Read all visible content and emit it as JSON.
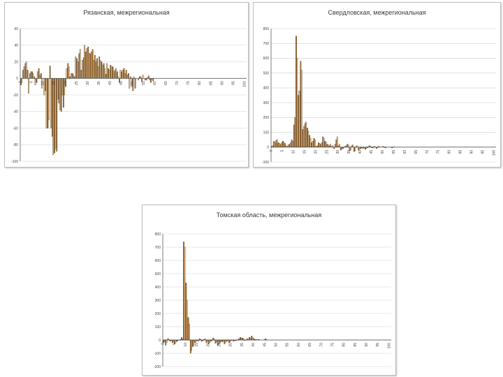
{
  "colors": {
    "series_a": "#b87a30",
    "series_b": "#f6cf9a",
    "edge": "#2b1a08",
    "grid": "#cfcfcf",
    "axis": "#444444"
  },
  "chart_data": [
    {
      "type": "bar",
      "title": "Рязанская, межрегиональная",
      "ylim": [
        -100,
        60
      ],
      "yticks": [
        -100,
        -80,
        -60,
        -40,
        -20,
        0,
        20,
        40,
        60
      ],
      "xticks": [
        0,
        5,
        10,
        15,
        20,
        25,
        30,
        35,
        40,
        45,
        50,
        55,
        60,
        65,
        70,
        75,
        80,
        85,
        90,
        95,
        100
      ],
      "x_start": 0,
      "x_step": 1,
      "grid": true,
      "series": [
        {
          "values": [
            -8,
            10,
            18,
            10,
            6,
            8,
            2,
            -5,
            12,
            6,
            0,
            -15,
            -60,
            15,
            -70,
            -90,
            -88,
            -30,
            -40,
            -35,
            -10,
            18,
            2,
            6,
            2,
            24,
            30,
            10,
            25,
            32,
            38,
            30,
            35,
            28,
            24,
            26,
            20,
            18,
            5,
            12,
            16,
            14,
            10,
            8,
            -5,
            8,
            12,
            10,
            6,
            2,
            -15,
            -12,
            0,
            2,
            -4,
            0,
            -2,
            3,
            -5,
            -3,
            0,
            0,
            0,
            0,
            0,
            0,
            0,
            0,
            0,
            0,
            0,
            0,
            0,
            0,
            0,
            0,
            0,
            0,
            0,
            0,
            0,
            0,
            0,
            0,
            0,
            0,
            0,
            0,
            0,
            0,
            0,
            0,
            0,
            0,
            0,
            0,
            0,
            0,
            0,
            0,
            0
          ]
        },
        {
          "values": [
            -5,
            14,
            20,
            -18,
            8,
            6,
            -8,
            8,
            4,
            -12,
            -20,
            -60,
            -50,
            -60,
            -92,
            -85,
            -25,
            -38,
            -20,
            -20,
            12,
            14,
            6,
            4,
            26,
            20,
            35,
            22,
            40,
            36,
            30,
            32,
            22,
            20,
            14,
            22,
            16,
            12,
            18,
            10,
            14,
            8,
            12,
            2,
            10,
            10,
            6,
            4,
            -12,
            -10,
            2,
            0,
            -2,
            2,
            4,
            -2,
            1,
            -2,
            -1,
            0,
            0,
            0,
            0,
            0,
            0,
            0,
            0,
            0,
            0,
            0,
            0,
            0,
            0,
            0,
            0,
            0,
            0,
            0,
            0,
            0,
            0,
            0,
            0,
            0,
            0,
            0,
            0,
            0,
            0,
            0,
            0,
            0,
            0,
            0,
            0,
            0,
            0,
            0,
            0,
            0,
            0
          ]
        }
      ]
    },
    {
      "type": "bar",
      "title": "Свердловская, межрегиональная",
      "ylim": [
        -100,
        800
      ],
      "yticks": [
        -100,
        0,
        100,
        200,
        300,
        400,
        500,
        600,
        700,
        800
      ],
      "xticks": [
        0,
        5,
        10,
        15,
        20,
        25,
        30,
        35,
        40,
        45,
        50,
        55,
        60,
        65,
        70,
        75,
        80,
        85,
        90,
        95,
        100
      ],
      "x_start": 0,
      "x_step": 1,
      "grid": true,
      "series": [
        {
          "values": [
            5,
            40,
            45,
            30,
            20,
            40,
            25,
            5,
            20,
            50,
            150,
            750,
            350,
            580,
            120,
            160,
            130,
            80,
            30,
            60,
            5,
            30,
            20,
            70,
            40,
            20,
            10,
            5,
            -10,
            50,
            10,
            -20,
            -10,
            5,
            20,
            -25,
            10,
            -30,
            5,
            -20,
            -10,
            -10,
            -15,
            -5,
            10,
            -5,
            5,
            -10,
            5,
            0,
            5,
            -5,
            0,
            0,
            -5,
            2,
            0,
            0,
            0,
            0,
            0,
            0,
            0,
            0,
            0,
            0,
            0,
            0,
            0,
            0,
            0,
            0,
            0,
            0,
            0,
            0,
            0,
            0,
            0,
            0,
            0,
            0,
            0,
            0,
            0,
            0,
            0,
            0,
            0,
            0,
            0,
            0,
            0,
            0,
            0,
            0,
            0,
            0,
            0,
            0,
            0
          ]
        },
        {
          "values": [
            10,
            30,
            50,
            25,
            30,
            35,
            10,
            15,
            30,
            40,
            200,
            600,
            380,
            520,
            140,
            170,
            110,
            60,
            40,
            50,
            10,
            25,
            30,
            60,
            30,
            15,
            20,
            10,
            20,
            70,
            20,
            -15,
            -5,
            10,
            15,
            -20,
            15,
            -25,
            10,
            -15,
            -5,
            -5,
            -10,
            5,
            5,
            -5,
            2,
            -5,
            2,
            0,
            2,
            -2,
            0,
            0,
            -2,
            0,
            0,
            0,
            0,
            0,
            0,
            0,
            0,
            0,
            0,
            0,
            0,
            0,
            0,
            0,
            0,
            0,
            0,
            0,
            0,
            0,
            0,
            0,
            0,
            0,
            0,
            0,
            0,
            0,
            0,
            0,
            0,
            0,
            0,
            0,
            0,
            0,
            0,
            0,
            0,
            0,
            0,
            0,
            0,
            0,
            0
          ]
        }
      ]
    },
    {
      "type": "bar",
      "title": "Томская область, межрегиональная",
      "ylim": [
        -200,
        800
      ],
      "yticks": [
        -200,
        -100,
        0,
        100,
        200,
        300,
        400,
        500,
        600,
        700,
        800
      ],
      "xticks": [
        0,
        5,
        10,
        15,
        20,
        25,
        30,
        35,
        40,
        45,
        50,
        55,
        60,
        65,
        70,
        75,
        80,
        85,
        90,
        95,
        100
      ],
      "x_start": 0,
      "x_step": 1,
      "grid": true,
      "series": [
        {
          "values": [
            -20,
            -40,
            10,
            -10,
            -20,
            -30,
            -10,
            0,
            20,
            740,
            430,
            170,
            -100,
            -50,
            -20,
            -5,
            10,
            -10,
            5,
            -20,
            -30,
            -10,
            15,
            -25,
            -40,
            -20,
            -15,
            -30,
            -10,
            -20,
            -5,
            -10,
            -5,
            5,
            20,
            15,
            -5,
            10,
            20,
            30,
            10,
            5,
            5,
            0,
            0,
            10,
            0,
            0,
            0,
            0,
            0,
            0,
            0,
            0,
            0,
            0,
            0,
            0,
            0,
            0,
            0,
            0,
            0,
            0,
            0,
            0,
            0,
            0,
            0,
            0,
            0,
            0,
            0,
            0,
            0,
            0,
            0,
            0,
            0,
            0,
            0,
            0,
            0,
            0,
            0,
            0,
            0,
            0,
            0,
            0,
            0,
            0,
            0,
            0,
            0,
            0,
            0,
            0,
            0,
            0,
            0
          ]
        },
        {
          "values": [
            -15,
            -20,
            5,
            -5,
            -15,
            -20,
            -5,
            5,
            10,
            700,
            300,
            120,
            -80,
            -40,
            -10,
            -10,
            5,
            -5,
            10,
            -10,
            -20,
            -5,
            10,
            -15,
            -30,
            -10,
            -10,
            -20,
            -5,
            -15,
            -2,
            -5,
            -2,
            10,
            15,
            10,
            0,
            5,
            15,
            20,
            5,
            0,
            2,
            0,
            0,
            5,
            0,
            0,
            0,
            0,
            0,
            0,
            0,
            0,
            0,
            0,
            0,
            0,
            0,
            0,
            0,
            0,
            0,
            0,
            0,
            0,
            0,
            0,
            0,
            0,
            0,
            0,
            0,
            0,
            0,
            0,
            0,
            0,
            0,
            0,
            0,
            0,
            0,
            0,
            0,
            0,
            0,
            0,
            0,
            0,
            0,
            0,
            0,
            0,
            0,
            0,
            0,
            0,
            0,
            0,
            0
          ]
        }
      ]
    }
  ]
}
